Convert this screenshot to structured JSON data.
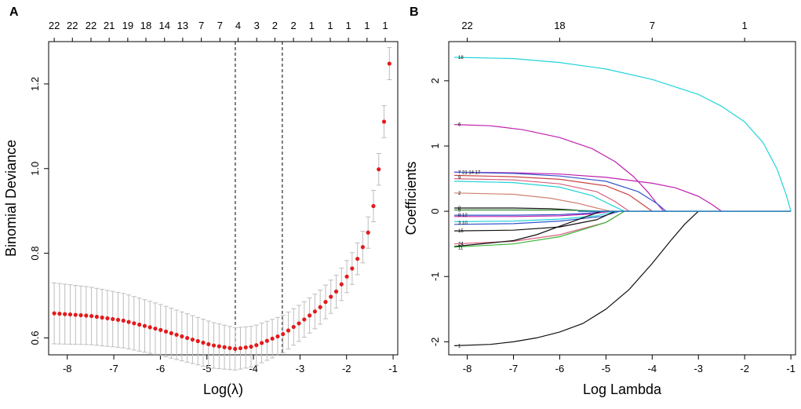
{
  "chart_data": [
    {
      "panel_label": "A",
      "type": "scatter",
      "title": "",
      "xlabel": "Log(λ)",
      "ylabel": "Binomial Deviance",
      "xlim": [
        -8.4,
        -0.9
      ],
      "ylim": [
        0.56,
        1.3
      ],
      "x_ticks": [
        -8,
        -7,
        -6,
        -5,
        -4,
        -3,
        -2,
        -1
      ],
      "x_tick_labels": [
        "-8",
        "-7",
        "-6",
        "-5",
        "-4",
        "-3",
        "-2",
        "-1"
      ],
      "y_ticks": [
        0.6,
        0.8,
        1.0,
        1.2
      ],
      "y_tick_labels": [
        "0.6",
        "0.8",
        "1.0",
        "1.2"
      ],
      "top_axis_labels": [
        "22",
        "22",
        "22",
        "21",
        "19",
        "18",
        "14",
        "13",
        "7",
        "7",
        "4",
        "3",
        "2",
        "2",
        "1",
        "1",
        "1",
        "1",
        "1"
      ],
      "top_axis_x": [
        -8.28,
        -7.89,
        -7.49,
        -7.1,
        -6.7,
        -6.31,
        -5.91,
        -5.52,
        -5.12,
        -4.72,
        -4.33,
        -3.93,
        -3.54,
        -3.14,
        -2.75,
        -2.35,
        -1.96,
        -1.56,
        -1.17
      ],
      "vlines": [
        -4.39,
        -3.38
      ],
      "x_start": -8.28,
      "x_end": -1.08,
      "n_points": 64,
      "point_color": "#e41a1c",
      "errorbar_color": "#bdbdbd",
      "series_spec": "mean(x) piecewise; error half-width grows with x",
      "mean_knots_x": [
        -8.28,
        -7.5,
        -6.8,
        -6.0,
        -5.4,
        -4.9,
        -4.39,
        -4.0,
        -3.38,
        -3.0,
        -2.6,
        -2.2,
        -1.9,
        -1.7,
        -1.5,
        -1.35,
        -1.22,
        -1.08
      ],
      "mean_knots_y": [
        0.658,
        0.652,
        0.641,
        0.619,
        0.599,
        0.583,
        0.574,
        0.58,
        0.608,
        0.636,
        0.669,
        0.712,
        0.76,
        0.8,
        0.86,
        0.96,
        1.08,
        1.248
      ],
      "err_knots_x": [
        -8.28,
        -5.0,
        -4.39,
        -3.5,
        -2.5,
        -2.0,
        -1.5,
        -1.08
      ],
      "err_knots_y": [
        0.072,
        0.055,
        0.05,
        0.045,
        0.04,
        0.038,
        0.037,
        0.038
      ]
    },
    {
      "panel_label": "B",
      "type": "line",
      "title": "",
      "xlabel": "Log Lambda",
      "ylabel": "Coefficients",
      "xlim": [
        -8.4,
        -0.9
      ],
      "ylim": [
        -2.2,
        2.6
      ],
      "x_ticks": [
        -8,
        -7,
        -6,
        -5,
        -4,
        -3,
        -2,
        -1
      ],
      "x_tick_labels": [
        "-8",
        "-7",
        "-6",
        "-5",
        "-4",
        "-3",
        "-2",
        "-1"
      ],
      "y_ticks": [
        -2,
        -1,
        0,
        1,
        2
      ],
      "y_tick_labels": [
        "-2",
        "-1",
        "0",
        "1",
        "2"
      ],
      "top_axis_labels": [
        "22",
        "18",
        "7",
        "1"
      ],
      "top_axis_x": [
        -8.0,
        -6.0,
        -4.0,
        -2.0
      ],
      "series": [
        {
          "name": "18",
          "color": "#22d3d8",
          "x": [
            -8.28,
            -7.0,
            -6.0,
            -5.0,
            -4.0,
            -3.0,
            -2.5,
            -2.0,
            -1.6,
            -1.3,
            -1.1,
            -1.0
          ],
          "y": [
            2.36,
            2.34,
            2.28,
            2.18,
            2.02,
            1.79,
            1.61,
            1.37,
            1.05,
            0.65,
            0.25,
            0.0
          ]
        },
        {
          "name": "6",
          "color": "#c020b0",
          "x": [
            -8.28,
            -7.5,
            -6.8,
            -6.0,
            -5.3,
            -4.8,
            -4.4,
            -4.1,
            -3.9,
            -3.75
          ],
          "y": [
            1.33,
            1.31,
            1.25,
            1.13,
            0.96,
            0.76,
            0.53,
            0.3,
            0.12,
            0.0
          ]
        },
        {
          "name": "",
          "color": "#c020b0",
          "x": [
            -8.28,
            -7.0,
            -6.0,
            -5.0,
            -4.0,
            -3.5,
            -3.0,
            -2.7,
            -2.5
          ],
          "y": [
            0.6,
            0.59,
            0.57,
            0.52,
            0.43,
            0.36,
            0.23,
            0.1,
            0.0
          ]
        },
        {
          "name": "",
          "color": "#3355cc",
          "x": [
            -8.28,
            -7.0,
            -6.0,
            -5.0,
            -4.3,
            -3.9,
            -3.7
          ],
          "y": [
            0.6,
            0.58,
            0.54,
            0.46,
            0.3,
            0.12,
            0.0
          ]
        },
        {
          "name": "",
          "color": "#cc4444",
          "x": [
            -8.28,
            -7.0,
            -6.0,
            -5.0,
            -4.5,
            -4.2,
            -4.0
          ],
          "y": [
            0.55,
            0.53,
            0.49,
            0.39,
            0.25,
            0.1,
            0.0
          ]
        },
        {
          "name": "",
          "color": "#d86080",
          "x": [
            -8.28,
            -7.0,
            -6.0,
            -5.2,
            -4.8,
            -4.5
          ],
          "y": [
            0.5,
            0.48,
            0.42,
            0.3,
            0.15,
            0.0
          ]
        },
        {
          "name": "",
          "color": "#22d3d8",
          "x": [
            -8.28,
            -7.0,
            -6.0,
            -5.3,
            -4.9,
            -4.6
          ],
          "y": [
            0.46,
            0.44,
            0.37,
            0.24,
            0.1,
            0.0
          ]
        },
        {
          "name": "9",
          "color": "#d08070",
          "x": [
            -8.28,
            -7.0,
            -6.2,
            -5.6,
            -5.2,
            -4.9
          ],
          "y": [
            0.28,
            0.26,
            0.2,
            0.12,
            0.05,
            0.0
          ]
        },
        {
          "name": "",
          "color": "#111111",
          "x": [
            -8.28,
            -7.0,
            -6.2,
            -5.7,
            -5.4
          ],
          "y": [
            0.05,
            0.05,
            0.04,
            0.02,
            0.0
          ]
        },
        {
          "name": "",
          "color": "#2e8b2e",
          "x": [
            -8.28,
            -7.0,
            -6.0,
            -5.4,
            -5.1
          ],
          "y": [
            0.02,
            0.02,
            0.02,
            0.01,
            0.0
          ]
        },
        {
          "name": "",
          "color": "#3355cc",
          "x": [
            -8.28,
            -7.0,
            -6.0,
            -5.4,
            -5.0
          ],
          "y": [
            -0.06,
            -0.06,
            -0.05,
            -0.03,
            0.0
          ]
        },
        {
          "name": "",
          "color": "#c020b0",
          "x": [
            -8.28,
            -7.0,
            -6.0,
            -5.3,
            -4.9
          ],
          "y": [
            -0.08,
            -0.08,
            -0.07,
            -0.04,
            0.0
          ]
        },
        {
          "name": "",
          "color": "#22d3d8",
          "x": [
            -8.28,
            -7.0,
            -6.0,
            -5.2,
            -4.8
          ],
          "y": [
            -0.16,
            -0.15,
            -0.12,
            -0.07,
            0.0
          ]
        },
        {
          "name": "",
          "color": "#3355cc",
          "x": [
            -8.28,
            -7.0,
            -6.0,
            -5.1,
            -4.7
          ],
          "y": [
            -0.2,
            -0.19,
            -0.15,
            -0.08,
            0.0
          ]
        },
        {
          "name": "15",
          "color": "#111111",
          "x": [
            -8.28,
            -7.0,
            -6.0,
            -5.2,
            -4.8
          ],
          "y": [
            -0.3,
            -0.29,
            -0.24,
            -0.13,
            0.0
          ]
        },
        {
          "name": "24",
          "color": "#d86080",
          "x": [
            -8.28,
            -7.0,
            -6.0,
            -5.0,
            -4.6
          ],
          "y": [
            -0.5,
            -0.46,
            -0.36,
            -0.17,
            0.0
          ]
        },
        {
          "name": "",
          "color": "#111111",
          "x": [
            -8.28,
            -7.0,
            -6.5,
            -6.0,
            -5.5,
            -5.1
          ],
          "y": [
            -0.54,
            -0.45,
            -0.36,
            -0.23,
            -0.1,
            0.0
          ]
        },
        {
          "name": "",
          "color": "#3cb83c",
          "x": [
            -8.28,
            -7.0,
            -6.0,
            -5.0,
            -4.6
          ],
          "y": [
            -0.55,
            -0.5,
            -0.39,
            -0.17,
            0.0
          ]
        },
        {
          "name": "1",
          "color": "#111111",
          "x": [
            -8.28,
            -7.5,
            -7.0,
            -6.5,
            -6.0,
            -5.5,
            -5.0,
            -4.5,
            -4.0,
            -3.6,
            -3.3,
            -3.0
          ],
          "y": [
            -2.06,
            -2.04,
            -2.0,
            -1.94,
            -1.85,
            -1.72,
            -1.5,
            -1.2,
            -0.8,
            -0.45,
            -0.2,
            0.0
          ]
        }
      ],
      "left_labels": [
        "18",
        "6",
        "7 21 14 17",
        "9",
        "2",
        "8",
        "5",
        "8 12",
        "3 10",
        "15",
        "24",
        "11",
        "1"
      ],
      "left_label_y": [
        2.36,
        1.33,
        0.6,
        0.52,
        0.28,
        0.05,
        0.02,
        -0.06,
        -0.18,
        -0.3,
        -0.5,
        -0.56,
        -2.06
      ],
      "flat_line_color": "#1f77b4"
    }
  ]
}
